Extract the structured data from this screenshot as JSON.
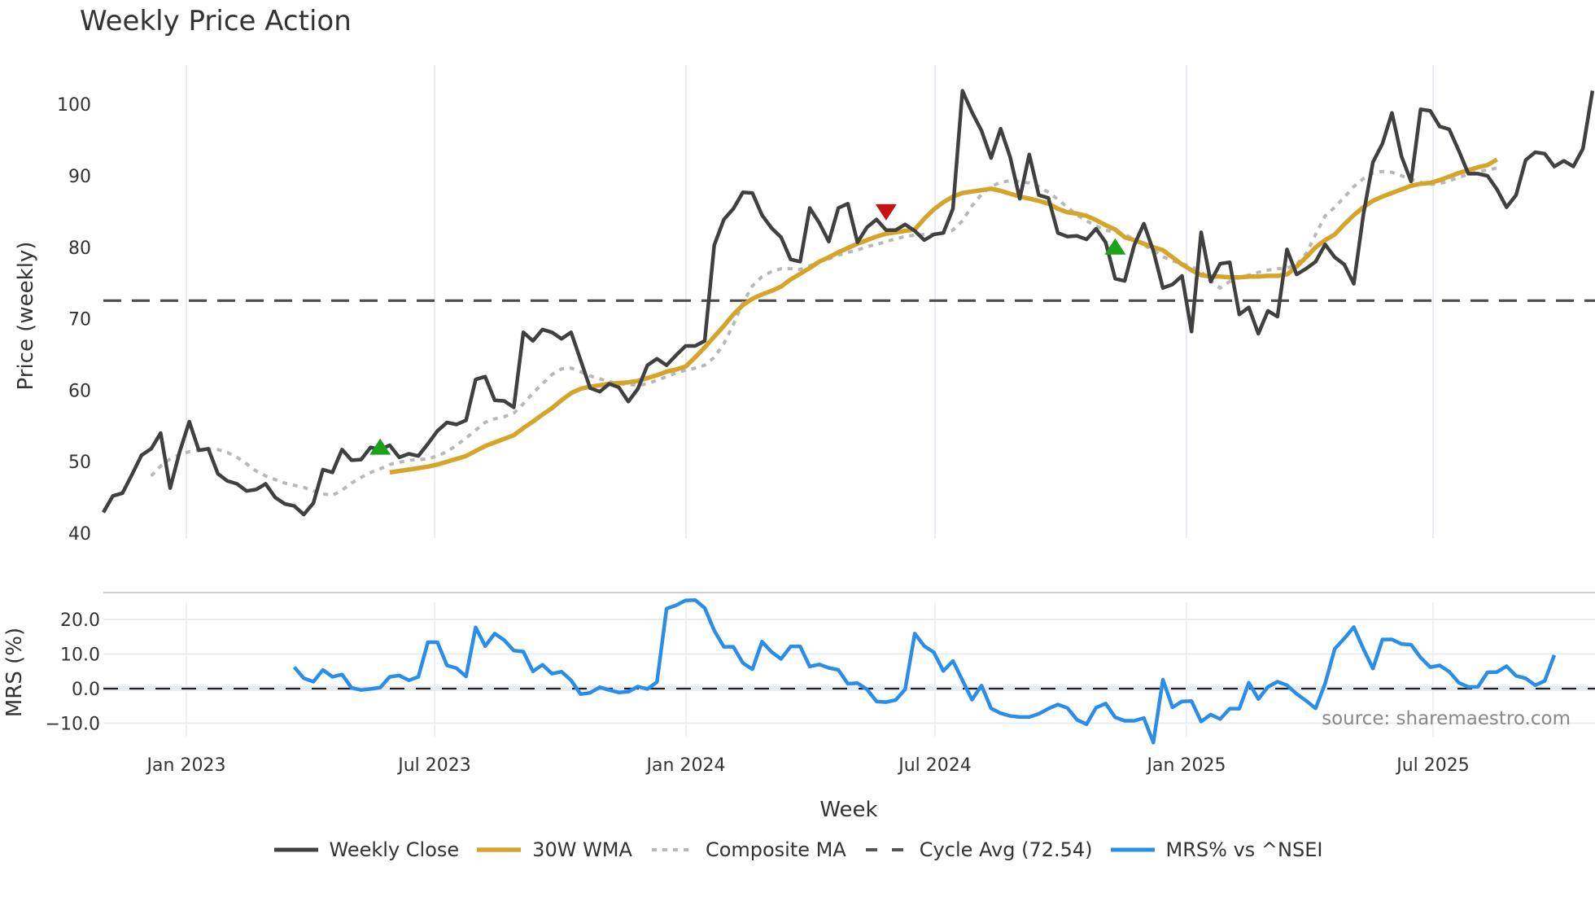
{
  "title": "Weekly Price Action",
  "colors": {
    "weekly_close": "#404040",
    "wma": "#d4a52a",
    "composite": "#b8b8b8",
    "cycle_avg": "#4a4a4a",
    "mrs": "#2a8ee8",
    "buy_marker": "#1aa31a",
    "sell_marker": "#cc1111",
    "grid": "#e8ecf2"
  },
  "source_text": "source: sharemaestro.com",
  "legend": [
    {
      "label": "Weekly Close",
      "style": "solid-dark"
    },
    {
      "label": "30W WMA",
      "style": "solid-gold"
    },
    {
      "label": "Composite MA",
      "style": "dotted-gray"
    },
    {
      "label": "Cycle Avg (72.54)",
      "style": "dashed-dark"
    },
    {
      "label": "MRS% vs ^NSEI",
      "style": "solid-blue"
    }
  ],
  "chart_data": [
    {
      "type": "line",
      "title": "Weekly Price Action",
      "xlabel": "Week",
      "ylabel": "Price (weekly)",
      "ylim": [
        40,
        105
      ],
      "yticks": [
        40,
        50,
        60,
        70,
        80,
        90,
        100
      ],
      "xticks": [
        "Jan 2023",
        "Jul 2023",
        "Jan 2024",
        "Jul 2024",
        "Jan 2025",
        "Jul 2025"
      ],
      "grid": "vertical",
      "x_start": "Nov 2022",
      "x_end": "Nov 2025",
      "horizontal_line": {
        "name": "Cycle Avg (72.54)",
        "value": 72.54,
        "style": "dashed"
      },
      "series": [
        {
          "name": "Weekly Close",
          "values": [
            42.9,
            45.2,
            45.6,
            48.2,
            50.9,
            51.8,
            54.0,
            46.3,
            51.4,
            55.6,
            51.6,
            51.8,
            48.3,
            47.3,
            46.9,
            45.9,
            46.1,
            46.9,
            45.0,
            44.1,
            43.8,
            42.6,
            44.2,
            48.9,
            48.5,
            51.7,
            50.2,
            50.3,
            52.0,
            51.7,
            52.3,
            50.6,
            51.1,
            50.8,
            52.5,
            54.3,
            55.5,
            55.2,
            55.8,
            61.5,
            61.9,
            58.6,
            58.5,
            57.6,
            68.1,
            66.9,
            68.5,
            68.1,
            67.2,
            68.1,
            64.2,
            60.3,
            59.8,
            60.9,
            60.4,
            58.4,
            60.2,
            63.5,
            64.4,
            63.5,
            64.9,
            66.2,
            66.2,
            66.9,
            80.3,
            83.9,
            85.4,
            87.7,
            87.6,
            84.5,
            82.7,
            81.4,
            78.3,
            78.0,
            85.5,
            83.4,
            80.8,
            85.5,
            86.1,
            80.7,
            82.8,
            83.9,
            82.4,
            82.4,
            83.2,
            82.3,
            81.0,
            81.8,
            82.0,
            85.4,
            101.9,
            98.9,
            96.3,
            92.5,
            96.6,
            92.6,
            86.8,
            93.0,
            87.3,
            86.9,
            82.0,
            81.5,
            81.6,
            81.1,
            82.6,
            80.7,
            75.6,
            75.3,
            80.3,
            83.3,
            79.5,
            74.3,
            74.8,
            76.0,
            68.2,
            82.1,
            75.2,
            77.7,
            77.9,
            70.6,
            71.6,
            67.9,
            71.1,
            70.3,
            79.7,
            76.2,
            77.0,
            78.0,
            80.4,
            78.6,
            77.6,
            74.9,
            84.6,
            91.9,
            94.5,
            98.8,
            92.7,
            89.2,
            99.3,
            99.1,
            96.9,
            96.5,
            93.5,
            90.3,
            90.3,
            90.0,
            88.1,
            85.6,
            87.3,
            92.2,
            93.3,
            93.1,
            91.3,
            92.1,
            91.3,
            93.8,
            101.9
          ]
        },
        {
          "name": "30W WMA",
          "start_index": 30,
          "values": [
            48.5,
            48.7,
            48.9,
            49.1,
            49.3,
            49.6,
            50.0,
            50.4,
            50.8,
            51.5,
            52.2,
            52.7,
            53.2,
            53.7,
            54.7,
            55.6,
            56.6,
            57.5,
            58.6,
            59.6,
            60.2,
            60.5,
            60.7,
            60.9,
            61.0,
            61.1,
            61.3,
            61.7,
            62.1,
            62.6,
            62.9,
            63.3,
            64.6,
            66.0,
            67.5,
            69.0,
            70.6,
            71.9,
            72.8,
            73.4,
            73.9,
            74.5,
            75.5,
            76.3,
            77.1,
            78.0,
            78.6,
            79.3,
            79.9,
            80.5,
            81.0,
            81.5,
            81.9,
            82.1,
            82.3,
            82.5,
            84.0,
            85.3,
            86.3,
            87.1,
            87.6,
            87.8,
            88.0,
            88.2,
            87.9,
            87.5,
            87.1,
            86.8,
            86.5,
            86.1,
            85.4,
            84.9,
            84.7,
            84.4,
            83.8,
            83.1,
            82.5,
            81.4,
            81.0,
            80.5,
            80.0,
            79.6,
            78.6,
            77.6,
            76.8,
            76.1,
            75.9,
            75.9,
            75.8,
            75.8,
            75.9,
            75.9,
            76.0,
            76.0,
            76.2,
            77.3,
            78.6,
            80.0,
            81.0,
            81.8,
            83.2,
            84.5,
            85.6,
            86.5,
            87.1,
            87.6,
            88.1,
            88.6,
            88.9,
            89.0,
            89.4,
            89.9,
            90.4,
            90.8,
            91.2,
            91.5,
            92.3
          ]
        },
        {
          "name": "Composite MA",
          "start_index": 5,
          "values": [
            48.0,
            49.4,
            50.4,
            51.0,
            51.4,
            51.6,
            51.8,
            51.7,
            51.3,
            50.6,
            49.7,
            48.7,
            48.0,
            47.5,
            47.0,
            46.7,
            46.4,
            45.9,
            45.5,
            45.3,
            46.0,
            47.0,
            47.8,
            48.5,
            49.0,
            49.6,
            49.9,
            50.2,
            50.3,
            50.4,
            50.8,
            51.4,
            52.3,
            53.3,
            54.4,
            55.5,
            56.0,
            56.3,
            56.8,
            58.1,
            59.6,
            60.9,
            62.2,
            63.0,
            63.1,
            62.6,
            62.0,
            61.6,
            61.2,
            60.9,
            60.8,
            60.7,
            60.9,
            61.4,
            61.9,
            62.4,
            62.8,
            63.1,
            63.5,
            64.6,
            66.5,
            69.2,
            72.2,
            74.6,
            75.9,
            76.6,
            77.0,
            77.0,
            76.9,
            77.4,
            78.0,
            78.4,
            78.9,
            79.3,
            79.6,
            80.1,
            80.4,
            80.8,
            81.2,
            81.5,
            81.7,
            81.8,
            81.8,
            82.0,
            82.4,
            83.7,
            85.8,
            87.4,
            88.5,
            89.1,
            89.3,
            89.2,
            89.0,
            88.5,
            87.7,
            86.7,
            85.6,
            84.5,
            83.7,
            83.0,
            82.4,
            82.1,
            81.8,
            81.1,
            80.3,
            79.6,
            78.7,
            78.1,
            77.7,
            77.3,
            76.6,
            75.3,
            74.3,
            75.2,
            75.8,
            76.1,
            76.5,
            76.8,
            77.0,
            77.1,
            77.6,
            79.1,
            81.8,
            84.4,
            85.6,
            87.0,
            88.5,
            89.6,
            90.4,
            90.6,
            90.5,
            90.0,
            89.5,
            89.1,
            88.8,
            88.9,
            89.3,
            89.8,
            90.2,
            90.6,
            90.8,
            91.1
          ]
        }
      ],
      "markers": [
        {
          "type": "buy",
          "shape": "triangle-up",
          "week_index": 29,
          "value": 52.0
        },
        {
          "type": "sell",
          "shape": "triangle-down",
          "week_index": 82,
          "value": 85.0
        },
        {
          "type": "buy",
          "shape": "triangle-up",
          "week_index": 106,
          "value": 80.0
        }
      ]
    },
    {
      "type": "line",
      "title": "",
      "xlabel": "Week",
      "ylabel": "MRS (%)",
      "ylim": [
        -14,
        26
      ],
      "yticks": [
        "-10.0",
        "0.0",
        "10.0",
        "20.0"
      ],
      "horizontal_line": {
        "value": 0,
        "style": "dashed"
      },
      "series": [
        {
          "name": "MRS% vs ^NSEI",
          "start_index": 20,
          "values": [
            6.2,
            3.0,
            2.0,
            5.4,
            3.4,
            4.1,
            0.2,
            -0.4,
            -0.1,
            0.3,
            3.4,
            3.8,
            2.4,
            3.4,
            13.4,
            13.4,
            6.7,
            5.9,
            3.5,
            17.7,
            12.3,
            15.9,
            14.0,
            11.0,
            10.7,
            5.0,
            6.9,
            4.3,
            4.9,
            2.4,
            -1.6,
            -1.2,
            0.4,
            -0.4,
            -1.1,
            -0.9,
            0.6,
            -0.1,
            1.9,
            23.1,
            24.1,
            25.5,
            25.6,
            23.3,
            16.8,
            12.1,
            12.1,
            7.4,
            5.6,
            13.6,
            10.6,
            8.6,
            12.2,
            12.2,
            6.4,
            7.0,
            6.0,
            5.4,
            1.4,
            1.6,
            -0.2,
            -3.7,
            -3.9,
            -3.3,
            -0.2,
            15.9,
            12.3,
            10.5,
            5.1,
            8.0,
            2.4,
            -3.2,
            0.9,
            -5.7,
            -7.1,
            -7.9,
            -8.2,
            -8.2,
            -7.3,
            -5.8,
            -4.6,
            -5.6,
            -9.0,
            -10.3,
            -5.5,
            -4.3,
            -8.3,
            -9.3,
            -9.3,
            -8.5,
            -15.6,
            2.6,
            -5.4,
            -3.7,
            -3.6,
            -9.5,
            -7.5,
            -8.8,
            -5.8,
            -5.8,
            1.7,
            -3.0,
            0.5,
            2.0,
            1.0,
            -1.5,
            -3.5,
            -5.7,
            1.5,
            11.5,
            14.5,
            17.8,
            11.5,
            5.8,
            14.2,
            14.2,
            12.9,
            12.7,
            9.0,
            6.2,
            6.7,
            4.9,
            1.7,
            0.5,
            0.5,
            4.7,
            4.8,
            6.5,
            3.7,
            3.0,
            1.0,
            2.2,
            9.7
          ]
        }
      ]
    }
  ],
  "price_panel": {
    "y_axis_label": "Price (weekly)",
    "y_ticks": [
      "40",
      "50",
      "60",
      "70",
      "80",
      "90",
      "100"
    ]
  },
  "mrs_panel": {
    "y_axis_label": "MRS (%)",
    "y_ticks": [
      "−10.0",
      "0.0",
      "10.0",
      "20.0"
    ]
  },
  "x_axis": {
    "label": "Week",
    "ticks": [
      "Jan 2023",
      "Jul 2023",
      "Jan 2024",
      "Jul 2024",
      "Jan 2025",
      "Jul 2025"
    ]
  }
}
